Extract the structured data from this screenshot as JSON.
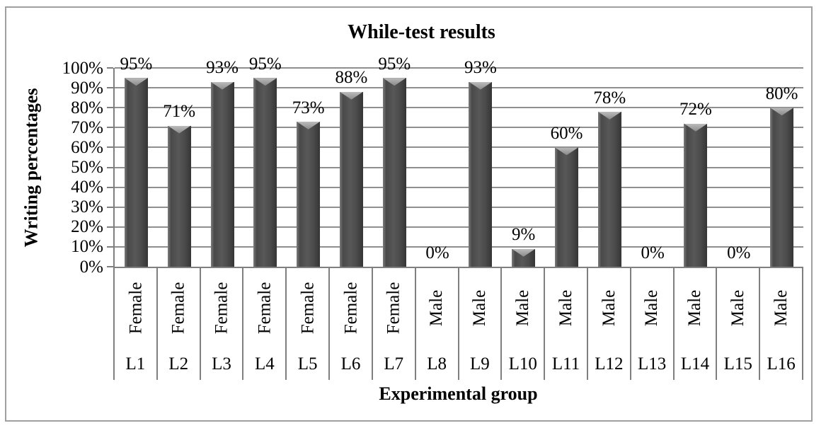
{
  "chart_data": {
    "type": "bar",
    "title": "While-test results",
    "xlabel": "Experimental group",
    "ylabel": "Writing percentages",
    "categories": [
      "L1",
      "L2",
      "L3",
      "L4",
      "L5",
      "L6",
      "L7",
      "L8",
      "L9",
      "L10",
      "L11",
      "L12",
      "L13",
      "L14",
      "L15",
      "L16"
    ],
    "groups": [
      "Female",
      "Female",
      "Female",
      "Female",
      "Female",
      "Female",
      "Female",
      "Male",
      "Male",
      "Male",
      "Male",
      "Male",
      "Male",
      "Male",
      "Male",
      "Male"
    ],
    "series": [
      {
        "name": "While-test results",
        "values": [
          95,
          71,
          93,
          95,
          73,
          88,
          95,
          0,
          93,
          9,
          60,
          78,
          0,
          72,
          0,
          80
        ]
      }
    ],
    "value_labels": [
      "95%",
      "71%",
      "93%",
      "95%",
      "73%",
      "88%",
      "95%",
      "0%",
      "93%",
      "9%",
      "60%",
      "78%",
      "0%",
      "72%",
      "0%",
      "80%"
    ],
    "yticks": [
      0,
      10,
      20,
      30,
      40,
      50,
      60,
      70,
      80,
      90,
      100
    ],
    "ytick_labels": [
      "0%",
      "10%",
      "20%",
      "30%",
      "40%",
      "50%",
      "60%",
      "70%",
      "80%",
      "90%",
      "100%"
    ],
    "ylim": [
      0,
      100
    ],
    "grid": true,
    "legend": false,
    "colors": {
      "bar": "#4a4a4a",
      "bar_bevel": "#a9a9a9",
      "gridline": "#8f8f8f",
      "axis": "#7f7f7f",
      "figure_border": "#a0a0a0",
      "text": "#000000"
    }
  }
}
